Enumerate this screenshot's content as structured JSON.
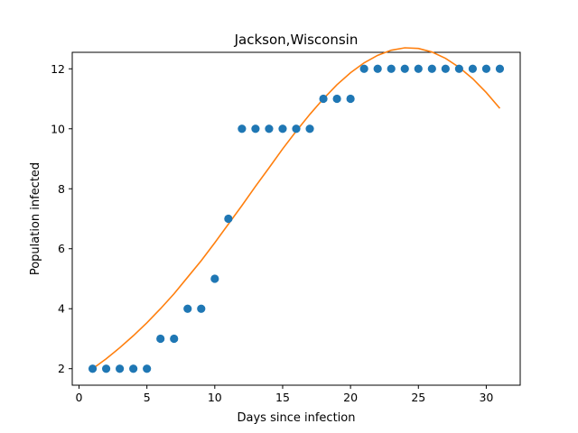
{
  "chart_data": {
    "type": "scatter",
    "title": "Jackson,Wisconsin",
    "xlabel": "Days since infection",
    "ylabel": "Population infected",
    "xlim": [
      -0.5,
      32.5
    ],
    "ylim": [
      1.45,
      12.55
    ],
    "xticks": [
      0,
      5,
      10,
      15,
      20,
      25,
      30
    ],
    "yticks": [
      2,
      4,
      6,
      8,
      10,
      12
    ],
    "grid": false,
    "legend": "none",
    "series": [
      {
        "kind": "scatter",
        "color": "#1f77b4",
        "x": [
          1,
          2,
          3,
          4,
          5,
          6,
          7,
          8,
          9,
          10,
          11,
          12,
          13,
          14,
          15,
          16,
          17,
          18,
          19,
          20,
          21,
          22,
          23,
          24,
          25,
          26,
          27,
          28,
          29,
          30,
          31
        ],
        "y": [
          2,
          2,
          2,
          2,
          2,
          3,
          3,
          4,
          4,
          5,
          7,
          10,
          10,
          10,
          10,
          10,
          10,
          11,
          11,
          11,
          12,
          12,
          12,
          12,
          12,
          12,
          12,
          12,
          12,
          12,
          12
        ]
      },
      {
        "kind": "line",
        "color": "#ff7f0e",
        "x": [
          1,
          2,
          3,
          4,
          5,
          6,
          7,
          8,
          9,
          10,
          11,
          12,
          13,
          14,
          15,
          16,
          17,
          18,
          19,
          20,
          21,
          22,
          23,
          24,
          25,
          26,
          27,
          28,
          29,
          30,
          31
        ],
        "y": [
          2.0,
          2.33,
          2.7,
          3.1,
          3.53,
          4.0,
          4.5,
          5.05,
          5.6,
          6.2,
          6.82,
          7.44,
          8.08,
          8.7,
          9.33,
          9.92,
          10.48,
          11.0,
          11.47,
          11.87,
          12.2,
          12.45,
          12.62,
          12.7,
          12.68,
          12.56,
          12.35,
          12.05,
          11.67,
          11.21,
          10.68
        ]
      }
    ]
  }
}
